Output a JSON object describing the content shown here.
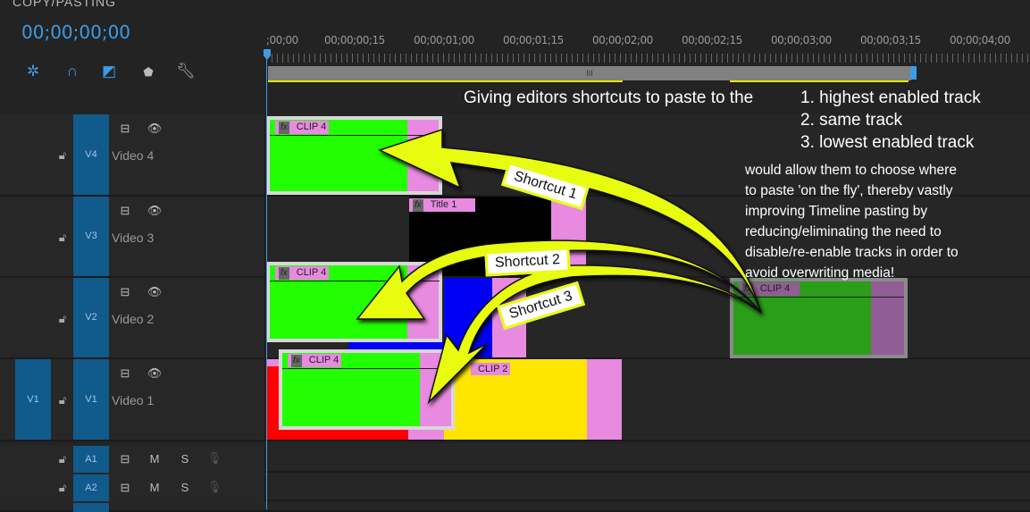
{
  "panel": {
    "title": "COPY/PASTING",
    "timecode": "00;00;00;00"
  },
  "toolbar": [
    {
      "icon": "nest-icon"
    },
    {
      "icon": "snap-magnet-icon"
    },
    {
      "icon": "linked-selection-icon"
    },
    {
      "icon": "add-marker-icon"
    },
    {
      "icon": "wrench-settings-icon"
    }
  ],
  "ruler": {
    "labels": [
      ";00;00",
      "00;00;00;15",
      "00;00;01;00",
      "00;00;01;15",
      "00;00;02;00",
      "00;00;02;15",
      "00;00;03;00",
      "00;00;03;15",
      "00;00;04;00"
    ],
    "work_area_handle": "III"
  },
  "tracks": {
    "video": [
      {
        "id": "V4",
        "name": "Video 4"
      },
      {
        "id": "V3",
        "name": "Video 3"
      },
      {
        "id": "V2",
        "name": "Video 2"
      },
      {
        "id": "V1",
        "name": "Video 1",
        "source": "V1"
      }
    ],
    "audio": [
      {
        "id": "A1",
        "mute": "M",
        "solo": "S"
      },
      {
        "id": "A2",
        "mute": "M",
        "solo": "S"
      }
    ]
  },
  "clips": {
    "clip4": "CLIP 4",
    "title1": "Title 1",
    "clip2": "CLIP 2",
    "fx": "fx"
  },
  "annotation": {
    "intro": "Giving editors shortcuts to paste to the",
    "list": [
      "1. highest enabled track",
      "2. same track",
      "3. lowest enabled track"
    ],
    "paragraph": [
      "would allow them to choose where",
      "to paste 'on the fly', thereby vastly",
      "improving Timeline pasting by",
      "reducing/eliminating the need to",
      "disable/re-enable tracks in order to",
      "avoid overwriting media!"
    ],
    "shortcuts": [
      "Shortcut 1",
      "Shortcut 2",
      "Shortcut 3"
    ]
  },
  "colors": {
    "accent": "#3c9be6",
    "arrow": "#e8fc0f",
    "green": "#22ff00",
    "pink": "#e78ae0"
  }
}
